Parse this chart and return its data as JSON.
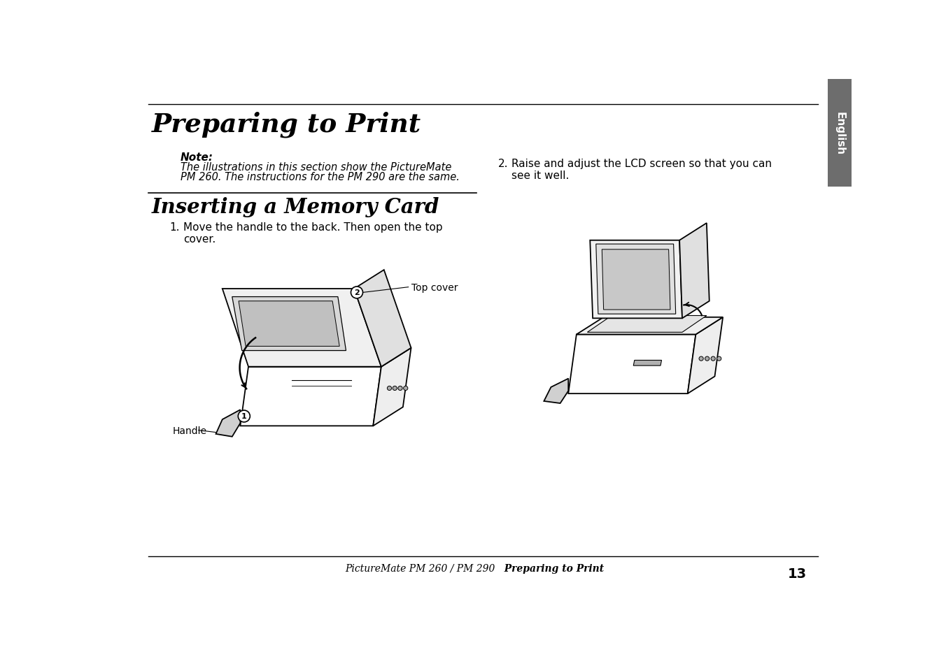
{
  "bg_color": "#ffffff",
  "title": "Preparing to Print",
  "section2_title": "Inserting a Memory Card",
  "note_label": "Note:",
  "note_text_line1": "The illustrations in this section show the PictureMate",
  "note_text_line2": "PM 260. The instructions for the PM 290 are the same.",
  "step1_num": "1.",
  "step1_text": "Move the handle to the back. Then open the top\ncover.",
  "step2_num": "2.",
  "step2_text": "Raise and adjust the LCD screen so that you can\nsee it well.",
  "label_top_cover": "Top cover",
  "label_handle": "Handle",
  "english_tab_color": "#6d6d6d",
  "english_text": "English",
  "footer_italic": "PictureMate PM 260 / PM 290",
  "footer_bold": "Preparing to Print",
  "footer_page": "13"
}
